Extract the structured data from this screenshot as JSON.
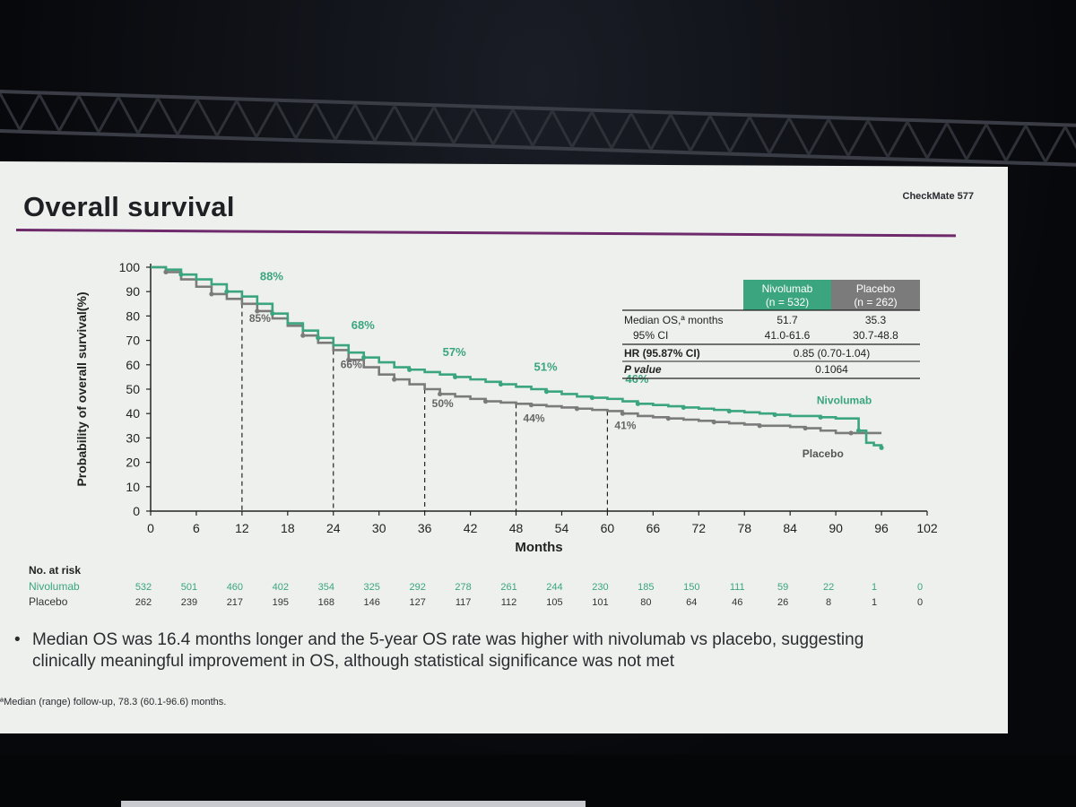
{
  "slide": {
    "title": "Overall survival",
    "study_tag": "CheckMate 577",
    "bullet": "Median OS was 16.4 months longer and the 5-year OS rate was higher with nivolumab vs placebo, suggesting clinically meaningful improvement in OS, although statistical significance was not met",
    "footnote": "ªMedian (range) follow-up, 78.3 (60.1-96.6) months."
  },
  "stats_table": {
    "col_nivo": "Nivolumab",
    "col_nivo_n": "(n = 532)",
    "col_plac": "Placebo",
    "col_plac_n": "(n = 262)",
    "rows": [
      {
        "label": "Median OS,ª months",
        "nivo": "51.7",
        "plac": "35.3"
      },
      {
        "label": "95% CI",
        "nivo": "41.0-61.6",
        "plac": "30.7-48.8"
      }
    ],
    "hr_label": "HR (95.87% CI)",
    "hr_value": "0.85 (0.70-1.04)",
    "p_label": "P value",
    "p_value": "0.1064"
  },
  "colors": {
    "nivolumab": "#3aa57f",
    "placebo": "#7b7b7b",
    "accent": "#6e2a6a"
  },
  "chart_data": {
    "type": "line",
    "title": "",
    "xlabel": "Months",
    "ylabel": "Probability of overall survival(%)",
    "xlim": [
      0,
      102
    ],
    "ylim": [
      0,
      100
    ],
    "xticks": [
      0,
      6,
      12,
      18,
      24,
      30,
      36,
      42,
      48,
      54,
      60,
      66,
      72,
      78,
      84,
      90,
      96,
      102
    ],
    "yticks": [
      0,
      10,
      20,
      30,
      40,
      50,
      60,
      70,
      80,
      90,
      100
    ],
    "series": [
      {
        "name": "Nivolumab",
        "x": [
          0,
          2,
          4,
          6,
          8,
          10,
          12,
          14,
          16,
          18,
          20,
          22,
          24,
          26,
          28,
          30,
          32,
          34,
          36,
          38,
          40,
          42,
          44,
          46,
          48,
          50,
          52,
          54,
          56,
          58,
          60,
          62,
          64,
          66,
          68,
          70,
          72,
          74,
          76,
          78,
          80,
          82,
          84,
          86,
          88,
          90,
          92,
          93,
          94,
          95,
          96
        ],
        "y": [
          100,
          99,
          97,
          95,
          93,
          90,
          88,
          85,
          81,
          77,
          74,
          71,
          68,
          65,
          63,
          61,
          59,
          58,
          57,
          56,
          55,
          54,
          53,
          52,
          51,
          50,
          49,
          48,
          47,
          46.5,
          46,
          45,
          44,
          43.5,
          43,
          42.5,
          42,
          41.5,
          41,
          40.5,
          40,
          39.5,
          39,
          39,
          38.5,
          38,
          38,
          33,
          28,
          27,
          26
        ]
      },
      {
        "name": "Placebo",
        "x": [
          0,
          2,
          4,
          6,
          8,
          10,
          12,
          14,
          16,
          18,
          20,
          22,
          24,
          26,
          28,
          30,
          32,
          34,
          36,
          38,
          40,
          42,
          44,
          46,
          48,
          50,
          52,
          54,
          56,
          58,
          60,
          62,
          64,
          66,
          68,
          70,
          72,
          74,
          76,
          78,
          80,
          82,
          84,
          86,
          88,
          90,
          92,
          94,
          96
        ],
        "y": [
          100,
          98,
          95,
          92,
          89,
          87,
          85,
          82,
          79,
          76,
          72,
          69,
          66,
          62,
          59,
          56,
          54,
          52,
          50,
          48,
          47,
          46,
          45,
          44.5,
          44,
          43.5,
          43,
          42.5,
          42,
          41.5,
          41,
          40,
          39,
          38.5,
          38,
          37.5,
          37,
          36.5,
          36,
          35.5,
          35,
          35,
          34.5,
          34,
          33,
          32,
          32,
          32,
          32
        ]
      }
    ],
    "series_labels": {
      "nivolumab": "Nivolumab",
      "placebo": "Placebo"
    },
    "annotations": [
      {
        "x": 12,
        "nivo": "88%",
        "plac": "85%"
      },
      {
        "x": 24,
        "nivo": "68%",
        "plac": "66%"
      },
      {
        "x": 36,
        "nivo": "57%",
        "plac": "50%"
      },
      {
        "x": 48,
        "nivo": "51%",
        "plac": "44%"
      },
      {
        "x": 60,
        "nivo": "46%",
        "plac": "41%"
      }
    ],
    "risk_table": {
      "header": "No. at risk",
      "rows": [
        {
          "label": "Nivolumab",
          "values": [
            "532",
            "501",
            "460",
            "402",
            "354",
            "325",
            "292",
            "278",
            "261",
            "244",
            "230",
            "185",
            "150",
            "111",
            "59",
            "22",
            "1",
            "0"
          ]
        },
        {
          "label": "Placebo",
          "values": [
            "262",
            "239",
            "217",
            "195",
            "168",
            "146",
            "127",
            "117",
            "112",
            "105",
            "101",
            "80",
            "64",
            "46",
            "26",
            "8",
            "1",
            "0"
          ]
        }
      ]
    },
    "grid": false,
    "legend": "inline labels at right"
  }
}
